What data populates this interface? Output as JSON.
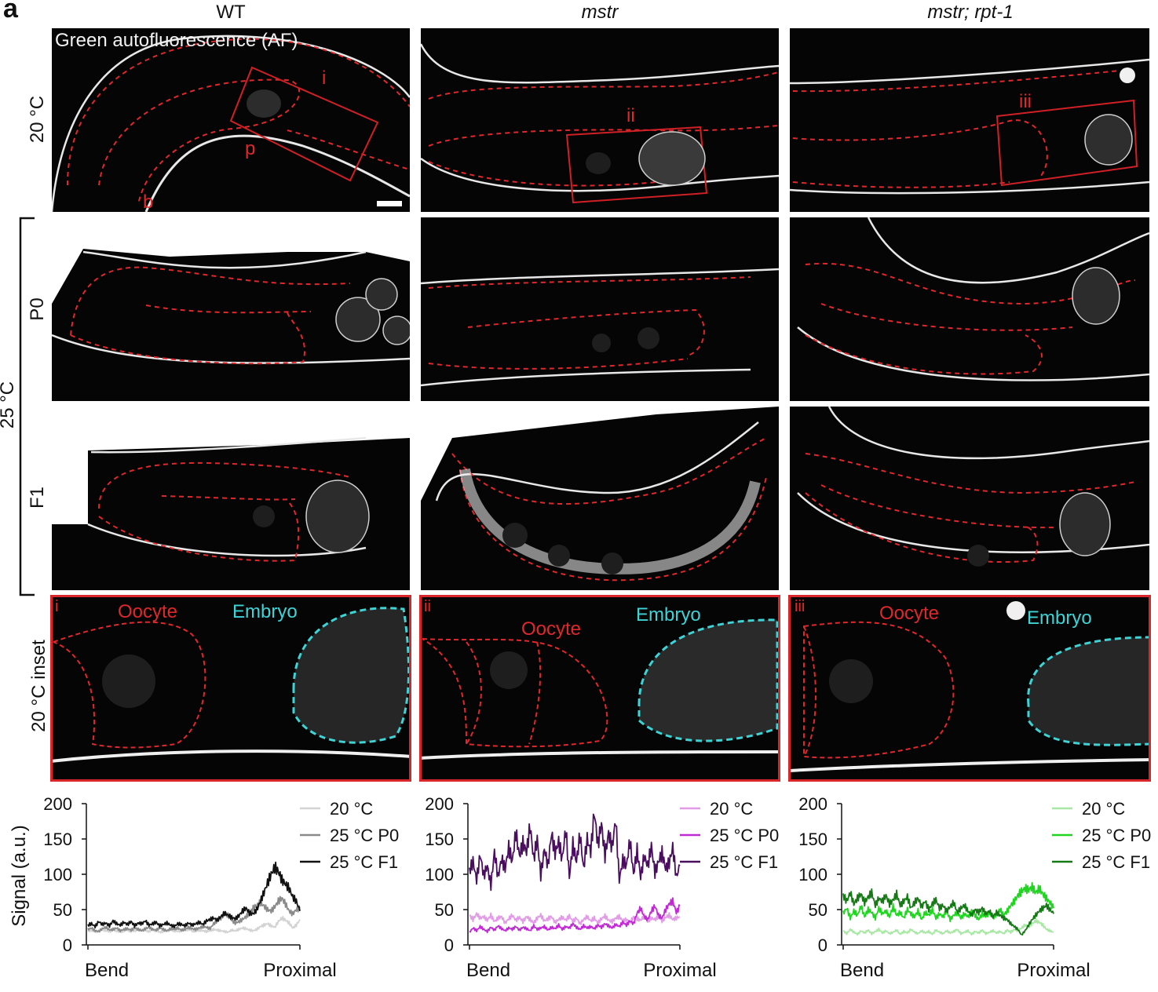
{
  "panel_letter": "a",
  "columns": [
    {
      "label": "WT",
      "italic": false
    },
    {
      "label": "mstr",
      "italic": true
    },
    {
      "label": "mstr; rpt-1",
      "italic": true
    }
  ],
  "row_labels": {
    "r20": "20 °C",
    "group25": "25 °C",
    "p0": "P0",
    "f1": "F1",
    "inset": "20 °C inset"
  },
  "image_overlay": {
    "channel_label": "Green autofluorescence (AF)",
    "wt_markers": {
      "box": "i",
      "proximal": "p",
      "bend": "b"
    },
    "mstr_marker": "ii",
    "rpt_marker": "iii"
  },
  "insets": [
    {
      "id": "i",
      "oocyte": "Oocyte",
      "embryo": "Embryo"
    },
    {
      "id": "ii",
      "oocyte": "Oocyte",
      "embryo": "Embryo"
    },
    {
      "id": "iii",
      "oocyte": "Oocyte",
      "embryo": "Embryo"
    }
  ],
  "colors": {
    "outline_red": "#e0282c",
    "embryo_cyan": "#3fd3d6",
    "inset_frame": "#d8262b"
  },
  "chart_data": [
    {
      "type": "line",
      "panel": "WT",
      "ylabel": "Signal (a.u.)",
      "xticks": [
        "Bend",
        "Proximal"
      ],
      "yticks": [
        0,
        50,
        100,
        150,
        200
      ],
      "ylim": [
        0,
        200
      ],
      "legend_position": "top-right",
      "series": [
        {
          "name": "20 °C",
          "color": "#d3d3d3",
          "values": [
            19,
            21,
            18,
            20,
            22,
            20,
            19,
            21,
            20,
            18,
            20,
            21,
            19,
            20,
            22,
            21,
            20,
            19,
            21,
            20,
            18,
            19,
            20,
            21,
            20,
            19,
            20,
            21,
            22,
            20,
            19,
            21,
            20,
            19,
            20,
            22,
            21,
            20,
            19,
            18,
            21,
            20,
            22,
            24,
            23,
            21,
            20,
            22,
            26,
            28,
            30,
            27,
            25,
            33,
            38,
            35,
            31,
            24,
            28,
            36
          ]
        },
        {
          "name": "25 °C P0",
          "color": "#8a8a8a",
          "values": [
            22,
            24,
            20,
            19,
            23,
            25,
            21,
            22,
            24,
            20,
            22,
            23,
            21,
            24,
            22,
            20,
            23,
            25,
            22,
            21,
            24,
            22,
            20,
            23,
            22,
            24,
            21,
            22,
            25,
            23,
            22,
            24,
            26,
            25,
            23,
            30,
            34,
            38,
            44,
            42,
            35,
            31,
            33,
            36,
            40,
            45,
            52,
            56,
            60,
            55,
            50,
            48,
            54,
            62,
            66,
            58,
            48,
            44,
            50,
            52
          ]
        },
        {
          "name": "25 °C F1",
          "color": "#111111",
          "values": [
            28,
            30,
            26,
            33,
            29,
            31,
            27,
            34,
            30,
            28,
            32,
            29,
            33,
            27,
            31,
            30,
            34,
            28,
            30,
            32,
            27,
            29,
            31,
            28,
            26,
            30,
            29,
            27,
            31,
            28,
            30,
            32,
            29,
            34,
            36,
            38,
            35,
            40,
            45,
            42,
            39,
            37,
            41,
            48,
            52,
            45,
            44,
            50,
            62,
            74,
            88,
            100,
            110,
            104,
            92,
            86,
            80,
            68,
            62,
            48
          ]
        }
      ]
    },
    {
      "type": "line",
      "panel": "mstr",
      "ylabel": "",
      "xticks": [
        "Bend",
        "Proximal"
      ],
      "yticks": [
        0,
        50,
        100,
        150,
        200
      ],
      "ylim": [
        0,
        200
      ],
      "legend_position": "top-right",
      "series": [
        {
          "name": "20 °C",
          "color": "#e29be6",
          "values": [
            42,
            36,
            44,
            38,
            40,
            35,
            42,
            33,
            38,
            40,
            31,
            37,
            42,
            35,
            39,
            33,
            40,
            36,
            31,
            38,
            42,
            34,
            37,
            40,
            32,
            36,
            39,
            35,
            41,
            33,
            38,
            30,
            36,
            40,
            34,
            38,
            31,
            37,
            41,
            35,
            33,
            38,
            40,
            34,
            36,
            32,
            39,
            37,
            35,
            41,
            33,
            38,
            36,
            40,
            34,
            39,
            42,
            36,
            38,
            40
          ]
        },
        {
          "name": "25 °C P0",
          "color": "#c02ad4",
          "values": [
            18,
            24,
            20,
            26,
            22,
            19,
            25,
            21,
            27,
            23,
            20,
            24,
            22,
            26,
            21,
            25,
            23,
            20,
            27,
            22,
            24,
            26,
            21,
            25,
            23,
            28,
            22,
            26,
            24,
            30,
            25,
            22,
            27,
            24,
            26,
            23,
            28,
            25,
            30,
            27,
            24,
            29,
            26,
            32,
            28,
            34,
            30,
            45,
            52,
            40,
            36,
            48,
            55,
            42,
            38,
            50,
            58,
            62,
            46,
            55
          ]
        },
        {
          "name": "25 °C F1",
          "color": "#4a0e5e",
          "values": [
            105,
            118,
            92,
            128,
            98,
            112,
            84,
            132,
            96,
            122,
            108,
            138,
            118,
            160,
            126,
            144,
            132,
            168,
            122,
            150,
            98,
            136,
            112,
            158,
            130,
            146,
            122,
            164,
            96,
            142,
            118,
            156,
            108,
            150,
            132,
            188,
            142,
            172,
            126,
            158,
            138,
            178,
            92,
            120,
            112,
            148,
            100,
            134,
            96,
            126,
            112,
            140,
            102,
            118,
            130,
            108,
            116,
            138,
            96,
            112
          ]
        }
      ]
    },
    {
      "type": "line",
      "panel": "mstr; rpt-1",
      "ylabel": "",
      "xticks": [
        "Bend",
        "Proximal"
      ],
      "yticks": [
        0,
        50,
        100,
        150,
        200
      ],
      "ylim": [
        0,
        200
      ],
      "legend_position": "top-right",
      "series": [
        {
          "name": "20 °C",
          "color": "#a8e8a4",
          "values": [
            20,
            16,
            22,
            18,
            15,
            20,
            17,
            21,
            16,
            19,
            22,
            17,
            20,
            16,
            18,
            21,
            15,
            19,
            17,
            22,
            18,
            16,
            20,
            17,
            19,
            15,
            21,
            18,
            16,
            20,
            17,
            19,
            22,
            16,
            18,
            20,
            15,
            19,
            17,
            21,
            16,
            18,
            20,
            17,
            19,
            16,
            21,
            18,
            22,
            20,
            24,
            28,
            26,
            30,
            34,
            32,
            28,
            22,
            20,
            18
          ]
        },
        {
          "name": "25 °C P0",
          "color": "#22d422",
          "values": [
            45,
            52,
            38,
            48,
            42,
            55,
            40,
            50,
            46,
            38,
            52,
            44,
            48,
            40,
            54,
            42,
            46,
            38,
            50,
            44,
            40,
            48,
            36,
            46,
            42,
            50,
            38,
            44,
            40,
            48,
            36,
            42,
            46,
            38,
            44,
            40,
            48,
            42,
            36,
            44,
            40,
            46,
            38,
            44,
            50,
            42,
            48,
            56,
            62,
            70,
            76,
            80,
            78,
            82,
            74,
            80,
            72,
            66,
            60,
            52
          ]
        },
        {
          "name": "25 °C F1",
          "color": "#157a15",
          "values": [
            70,
            62,
            74,
            58,
            66,
            72,
            60,
            68,
            74,
            56,
            66,
            62,
            70,
            58,
            64,
            72,
            56,
            62,
            68,
            52,
            60,
            66,
            54,
            62,
            50,
            58,
            64,
            52,
            56,
            48,
            54,
            60,
            46,
            52,
            56,
            48,
            42,
            50,
            46,
            52,
            44,
            48,
            40,
            46,
            42,
            38,
            36,
            30,
            26,
            22,
            14,
            20,
            28,
            36,
            42,
            48,
            52,
            56,
            50,
            44
          ]
        }
      ]
    }
  ]
}
